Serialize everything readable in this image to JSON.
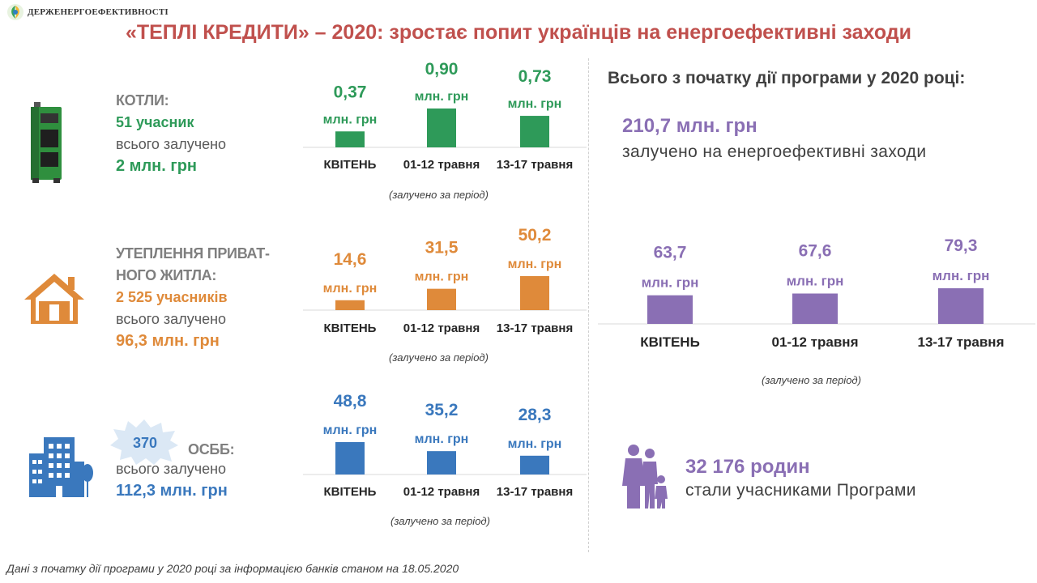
{
  "logo": {
    "text": "ДЕРЖЕНЕРГОЕФЕКТИВНОСТІ"
  },
  "title": "«ТЕПЛІ КРЕДИТИ» – 2020: зростає попит українців на енергоефективні заходи",
  "colors": {
    "green": "#2e9a59",
    "orange": "#df8a3a",
    "blue": "#3a78bd",
    "purple": "#8a6fb4",
    "title_red": "#c0504d"
  },
  "sections": {
    "boilers": {
      "icon": "boiler-icon",
      "caption": "КОТЛИ:",
      "participants": "51 учасник",
      "involved_label": "всього залучено",
      "involved_value": "2 млн. грн"
    },
    "insulation": {
      "icon": "house-icon",
      "caption_line1": "УТЕПЛЕННЯ ПРИВАТ-",
      "caption_line2": "НОГО ЖИТЛА:",
      "participants": "2 525 учасників",
      "involved_label": "всього залучено",
      "involved_value": "96,3 млн. грн"
    },
    "osbb": {
      "icon": "apartment-building-icon",
      "count": "370",
      "caption": "ОСББ:",
      "involved_label": "всього залучено",
      "involved_value": "112,3 млн. грн"
    }
  },
  "chart_data": [
    {
      "type": "bar",
      "name": "boilers",
      "categories": [
        "КВІТЕНЬ",
        "01-12 травня",
        "13-17 травня"
      ],
      "values": [
        0.37,
        0.9,
        0.73
      ],
      "value_labels": [
        "0,37",
        "0,90",
        "0,73"
      ],
      "unit": "млн. грн",
      "color": "#2e9a59",
      "note": "(залучено за період)"
    },
    {
      "type": "bar",
      "name": "insulation",
      "categories": [
        "КВІТЕНЬ",
        "01-12 травня",
        "13-17 травня"
      ],
      "values": [
        14.6,
        31.5,
        50.2
      ],
      "value_labels": [
        "14,6",
        "31,5",
        "50,2"
      ],
      "unit": "млн. грн",
      "color": "#df8a3a",
      "note": "(залучено за період)"
    },
    {
      "type": "bar",
      "name": "osbb",
      "categories": [
        "КВІТЕНЬ",
        "01-12 травня",
        "13-17 травня"
      ],
      "values": [
        48.8,
        35.2,
        28.3
      ],
      "value_labels": [
        "48,8",
        "35,2",
        "28,3"
      ],
      "unit": "млн. грн",
      "color": "#3a78bd",
      "note": "(залучено за період)"
    },
    {
      "type": "bar",
      "name": "total",
      "categories": [
        "КВІТЕНЬ",
        "01-12 травня",
        "13-17 травня"
      ],
      "values": [
        63.7,
        67.6,
        79.3
      ],
      "value_labels": [
        "63,7",
        "67,6",
        "79,3"
      ],
      "unit": "млн. грн",
      "color": "#8a6fb4",
      "note": "(залучено за період)"
    }
  ],
  "summary": {
    "heading": "Всього з початку дії програми у 2020 році:",
    "total_value": "210,7 млн. грн",
    "total_desc": "залучено на енергоефективні заходи",
    "families_value": "32 176 родин",
    "families_desc": "стали учасниками Програми",
    "families_icon": "family-icon"
  },
  "footnote": "Дані з початку дії програми у 2020 році за інформацією банків станом на 18.05.2020"
}
